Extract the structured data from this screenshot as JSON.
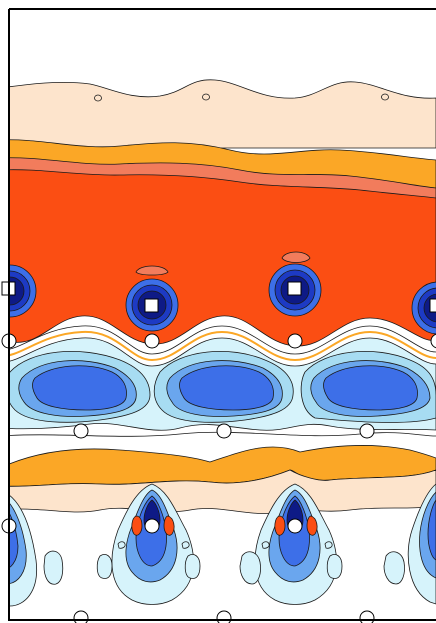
{
  "figure": {
    "kind": "filled contour map",
    "periodic_repeats": 3,
    "printed_text": []
  },
  "palette": {
    "background": "#ffffff",
    "pale_peach": "#fde4cc",
    "orange": "#fba726",
    "salmon": "#f27c5c",
    "red_orange": "#fb4e13",
    "pale_cyan": "#d6f3fb",
    "light_blue": "#a7dcf2",
    "mid_blue": "#6aa6ee",
    "blue": "#3d6fe8",
    "deep_blue": "#1d3ac4",
    "navy": "#0e1a86",
    "contour_line": "#1a1a1a",
    "marker_fill": "#ffffff",
    "frame": "#000000"
  },
  "markers": {
    "square_atoms": 4,
    "circle_atoms": 13
  }
}
